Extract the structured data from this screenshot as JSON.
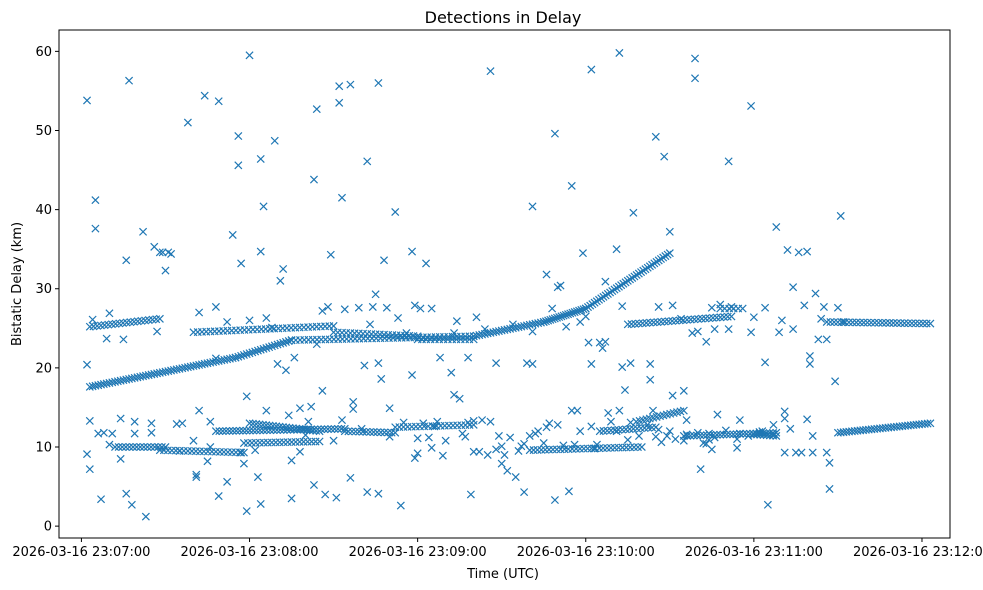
{
  "chart_data": {
    "type": "scatter",
    "title": "Detections in Delay",
    "xlabel": "Time (UTC)",
    "ylabel": "Bistatic Delay (km)",
    "marker": "x",
    "color": "#1f77b4",
    "grid": false,
    "xlim_seconds": [
      -8,
      310
    ],
    "ylim": [
      -1.5,
      62.7
    ],
    "x_origin": "2026-03-16 23:07:00",
    "x_ticks": [
      {
        "value": 0,
        "label": "2026-03-16 23:07:00"
      },
      {
        "value": 60,
        "label": "2026-03-16 23:08:00"
      },
      {
        "value": 120,
        "label": "2026-03-16 23:09:00"
      },
      {
        "value": 180,
        "label": "2026-03-16 23:10:00"
      },
      {
        "value": 240,
        "label": "2026-03-16 23:11:00"
      },
      {
        "value": 300,
        "label": "2026-03-16 23:12:00"
      }
    ],
    "y_ticks": [
      {
        "value": 0,
        "label": "0"
      },
      {
        "value": 10,
        "label": "10"
      },
      {
        "value": 20,
        "label": "20"
      },
      {
        "value": 30,
        "label": "30"
      },
      {
        "value": 40,
        "label": "40"
      },
      {
        "value": 50,
        "label": "50"
      },
      {
        "value": 60,
        "label": "60"
      }
    ],
    "tracks": [
      {
        "name": "rising-track",
        "t_start": 3,
        "t_end": 55,
        "y_start": 17.6,
        "y_end": 21.3,
        "step": 1
      },
      {
        "name": "rising-track",
        "t_start": 55,
        "t_end": 75,
        "y_start": 21.3,
        "y_end": 23.5,
        "step": 1
      },
      {
        "name": "rising-track",
        "t_start": 75,
        "t_end": 140,
        "y_start": 23.5,
        "y_end": 24.0,
        "step": 1.5
      },
      {
        "name": "rising-track",
        "t_start": 140,
        "t_end": 165,
        "y_start": 24.0,
        "y_end": 25.8,
        "step": 1
      },
      {
        "name": "rising-track",
        "t_start": 165,
        "t_end": 180,
        "y_start": 25.8,
        "y_end": 27.5,
        "step": 0.8
      },
      {
        "name": "rising-track",
        "t_start": 180,
        "t_end": 210,
        "y_start": 27.5,
        "y_end": 34.5,
        "step": 0.8
      },
      {
        "name": "upper-band",
        "t_start": 3,
        "t_end": 28,
        "y_start": 25.2,
        "y_end": 26.2,
        "step": 1.3
      },
      {
        "name": "upper-band",
        "t_start": 40,
        "t_end": 90,
        "y_start": 24.5,
        "y_end": 25.3,
        "step": 1.5
      },
      {
        "name": "upper-band",
        "t_start": 90,
        "t_end": 120,
        "y_start": 24.5,
        "y_end": 24.0,
        "step": 1.5
      },
      {
        "name": "upper-band",
        "t_start": 120,
        "t_end": 140,
        "y_start": 23.6,
        "y_end": 23.6,
        "step": 1.5
      },
      {
        "name": "upper-band",
        "t_start": 195,
        "t_end": 232,
        "y_start": 25.5,
        "y_end": 26.5,
        "step": 1.3
      },
      {
        "name": "upper-band",
        "t_start": 228,
        "t_end": 236,
        "y_start": 27.5,
        "y_end": 27.5,
        "step": 1.5
      },
      {
        "name": "upper-band",
        "t_start": 266,
        "t_end": 303,
        "y_start": 25.8,
        "y_end": 25.6,
        "step": 1.3
      },
      {
        "name": "lower-band",
        "t_start": 12,
        "t_end": 30,
        "y_start": 10.0,
        "y_end": 10.0,
        "step": 1.3
      },
      {
        "name": "lower-band",
        "t_start": 28,
        "t_end": 58,
        "y_start": 9.6,
        "y_end": 9.3,
        "step": 1.4
      },
      {
        "name": "lower-band",
        "t_start": 48,
        "t_end": 94,
        "y_start": 12.0,
        "y_end": 12.3,
        "step": 1.2
      },
      {
        "name": "lower-band",
        "t_start": 60,
        "t_end": 85,
        "y_start": 13.0,
        "y_end": 12.0,
        "step": 1.2
      },
      {
        "name": "lower-band",
        "t_start": 58,
        "t_end": 85,
        "y_start": 10.5,
        "y_end": 10.7,
        "step": 1.4
      },
      {
        "name": "lower-band",
        "t_start": 94,
        "t_end": 112,
        "y_start": 12.0,
        "y_end": 11.8,
        "step": 1.3
      },
      {
        "name": "lower-band",
        "t_start": 112,
        "t_end": 140,
        "y_start": 12.5,
        "y_end": 12.8,
        "step": 1.5
      },
      {
        "name": "lower-band",
        "t_start": 160,
        "t_end": 200,
        "y_start": 9.6,
        "y_end": 10.0,
        "step": 1.4
      },
      {
        "name": "lower-band",
        "t_start": 185,
        "t_end": 205,
        "y_start": 12.0,
        "y_end": 12.5,
        "step": 1.3
      },
      {
        "name": "lower-band",
        "t_start": 198,
        "t_end": 215,
        "y_start": 13.2,
        "y_end": 14.6,
        "step": 1.2
      },
      {
        "name": "lower-band",
        "t_start": 215,
        "t_end": 248,
        "y_start": 11.4,
        "y_end": 11.8,
        "step": 1.2
      },
      {
        "name": "lower-band",
        "t_start": 240,
        "t_end": 248,
        "y_start": 11.6,
        "y_end": 11.4,
        "step": 1.2
      },
      {
        "name": "lower-band",
        "t_start": 270,
        "t_end": 303,
        "y_start": 11.8,
        "y_end": 13.0,
        "step": 1.0
      }
    ],
    "points": [
      [
        2,
        53.8
      ],
      [
        2,
        20.4
      ],
      [
        2,
        9.1
      ],
      [
        3,
        7.2
      ],
      [
        3,
        13.3
      ],
      [
        4,
        26.1
      ],
      [
        5,
        41.2
      ],
      [
        5,
        37.6
      ],
      [
        6,
        11.7
      ],
      [
        7,
        3.4
      ],
      [
        8,
        11.8
      ],
      [
        9,
        23.7
      ],
      [
        10,
        26.9
      ],
      [
        10,
        10.3
      ],
      [
        11,
        11.7
      ],
      [
        14,
        8.5
      ],
      [
        14,
        13.6
      ],
      [
        15,
        23.6
      ],
      [
        16,
        4.1
      ],
      [
        16,
        33.6
      ],
      [
        17,
        56.3
      ],
      [
        18,
        2.7
      ],
      [
        19,
        11.7
      ],
      [
        19,
        13.2
      ],
      [
        22,
        37.2
      ],
      [
        23,
        1.2
      ],
      [
        25,
        13.0
      ],
      [
        25,
        11.8
      ],
      [
        26,
        35.3
      ],
      [
        27,
        24.6
      ],
      [
        28,
        34.6
      ],
      [
        29,
        34.6
      ],
      [
        30,
        32.3
      ],
      [
        31,
        34.6
      ],
      [
        32,
        34.4
      ],
      [
        34,
        12.9
      ],
      [
        35,
        9.5
      ],
      [
        36,
        13.0
      ],
      [
        38,
        51.0
      ],
      [
        40,
        10.8
      ],
      [
        41,
        6.5
      ],
      [
        41,
        6.2
      ],
      [
        42,
        14.6
      ],
      [
        42,
        27.0
      ],
      [
        44,
        54.4
      ],
      [
        45,
        8.2
      ],
      [
        46,
        10.0
      ],
      [
        46,
        13.2
      ],
      [
        48,
        21.2
      ],
      [
        48,
        27.7
      ],
      [
        49,
        53.7
      ],
      [
        49,
        3.8
      ],
      [
        52,
        5.6
      ],
      [
        52,
        25.8
      ],
      [
        54,
        36.8
      ],
      [
        56,
        49.3
      ],
      [
        56,
        45.6
      ],
      [
        57,
        33.2
      ],
      [
        57,
        9.3
      ],
      [
        58,
        7.9
      ],
      [
        59,
        1.9
      ],
      [
        59,
        16.4
      ],
      [
        60,
        59.5
      ],
      [
        60,
        26.0
      ],
      [
        62,
        9.6
      ],
      [
        63,
        6.2
      ],
      [
        64,
        2.8
      ],
      [
        64,
        34.7
      ],
      [
        64,
        46.4
      ],
      [
        65,
        40.4
      ],
      [
        66,
        14.6
      ],
      [
        66,
        26.3
      ],
      [
        68,
        25.1
      ],
      [
        69,
        48.7
      ],
      [
        70,
        20.5
      ],
      [
        71,
        31.0
      ],
      [
        72,
        32.5
      ],
      [
        73,
        19.7
      ],
      [
        74,
        14.0
      ],
      [
        75,
        3.5
      ],
      [
        75,
        8.3
      ],
      [
        76,
        21.3
      ],
      [
        78,
        14.9
      ],
      [
        78,
        9.4
      ],
      [
        80,
        11.5
      ],
      [
        81,
        13.2
      ],
      [
        82,
        15.1
      ],
      [
        83,
        43.8
      ],
      [
        83,
        5.2
      ],
      [
        84,
        52.7
      ],
      [
        84,
        23.0
      ],
      [
        86,
        17.1
      ],
      [
        86,
        27.2
      ],
      [
        87,
        4.0
      ],
      [
        88,
        27.7
      ],
      [
        89,
        34.3
      ],
      [
        90,
        10.8
      ],
      [
        91,
        3.6
      ],
      [
        92,
        53.5
      ],
      [
        92,
        55.6
      ],
      [
        93,
        41.5
      ],
      [
        93,
        13.4
      ],
      [
        94,
        27.4
      ],
      [
        96,
        55.8
      ],
      [
        96,
        6.1
      ],
      [
        97,
        14.8
      ],
      [
        97,
        15.7
      ],
      [
        99,
        27.6
      ],
      [
        100,
        12.3
      ],
      [
        101,
        20.3
      ],
      [
        102,
        46.1
      ],
      [
        102,
        4.3
      ],
      [
        103,
        25.5
      ],
      [
        104,
        27.7
      ],
      [
        105,
        29.3
      ],
      [
        106,
        56.0
      ],
      [
        106,
        4.1
      ],
      [
        106,
        20.6
      ],
      [
        107,
        18.6
      ],
      [
        108,
        33.6
      ],
      [
        109,
        27.6
      ],
      [
        110,
        14.9
      ],
      [
        110,
        11.3
      ],
      [
        112,
        39.7
      ],
      [
        113,
        26.3
      ],
      [
        114,
        2.6
      ],
      [
        115,
        13.1
      ],
      [
        116,
        24.4
      ],
      [
        118,
        34.7
      ],
      [
        118,
        19.1
      ],
      [
        119,
        27.9
      ],
      [
        119,
        8.6
      ],
      [
        120,
        9.2
      ],
      [
        120,
        11.1
      ],
      [
        121,
        27.5
      ],
      [
        122,
        13.0
      ],
      [
        123,
        33.2
      ],
      [
        124,
        11.2
      ],
      [
        125,
        9.9
      ],
      [
        125,
        27.5
      ],
      [
        126,
        12.6
      ],
      [
        127,
        13.2
      ],
      [
        128,
        21.3
      ],
      [
        129,
        8.9
      ],
      [
        130,
        10.8
      ],
      [
        132,
        19.4
      ],
      [
        133,
        16.6
      ],
      [
        133,
        24.4
      ],
      [
        134,
        25.9
      ],
      [
        135,
        16.1
      ],
      [
        136,
        11.7
      ],
      [
        137,
        11.3
      ],
      [
        138,
        13.1
      ],
      [
        138,
        21.3
      ],
      [
        139,
        4.0
      ],
      [
        140,
        13.3
      ],
      [
        140,
        9.4
      ],
      [
        141,
        26.4
      ],
      [
        142,
        9.4
      ],
      [
        143,
        13.4
      ],
      [
        144,
        24.9
      ],
      [
        145,
        9.0
      ],
      [
        146,
        57.5
      ],
      [
        146,
        13.2
      ],
      [
        148,
        20.6
      ],
      [
        148,
        9.7
      ],
      [
        149,
        11.4
      ],
      [
        150,
        7.9
      ],
      [
        150,
        10.1
      ],
      [
        151,
        9.0
      ],
      [
        152,
        7.0
      ],
      [
        153,
        11.2
      ],
      [
        154,
        25.5
      ],
      [
        155,
        6.2
      ],
      [
        156,
        9.5
      ],
      [
        157,
        10.1
      ],
      [
        158,
        4.3
      ],
      [
        158,
        10.4
      ],
      [
        159,
        20.6
      ],
      [
        160,
        11.4
      ],
      [
        161,
        40.4
      ],
      [
        161,
        24.6
      ],
      [
        161,
        20.5
      ],
      [
        162,
        11.7
      ],
      [
        163,
        12.0
      ],
      [
        165,
        10.5
      ],
      [
        166,
        31.8
      ],
      [
        166,
        12.5
      ],
      [
        167,
        13.0
      ],
      [
        168,
        27.5
      ],
      [
        169,
        3.3
      ],
      [
        169,
        49.6
      ],
      [
        170,
        30.2
      ],
      [
        170,
        12.8
      ],
      [
        171,
        30.4
      ],
      [
        172,
        10.2
      ],
      [
        173,
        25.2
      ],
      [
        174,
        4.4
      ],
      [
        175,
        43.0
      ],
      [
        175,
        14.6
      ],
      [
        176,
        10.3
      ],
      [
        177,
        14.6
      ],
      [
        178,
        25.8
      ],
      [
        178,
        12.0
      ],
      [
        179,
        34.5
      ],
      [
        180,
        26.5
      ],
      [
        181,
        23.2
      ],
      [
        182,
        57.7
      ],
      [
        182,
        20.5
      ],
      [
        182,
        12.6
      ],
      [
        183,
        9.8
      ],
      [
        184,
        10.3
      ],
      [
        185,
        23.2
      ],
      [
        186,
        22.5
      ],
      [
        187,
        30.9
      ],
      [
        187,
        23.3
      ],
      [
        188,
        14.3
      ],
      [
        189,
        13.2
      ],
      [
        191,
        35.0
      ],
      [
        191,
        12.0
      ],
      [
        192,
        59.8
      ],
      [
        192,
        14.6
      ],
      [
        193,
        20.1
      ],
      [
        193,
        27.8
      ],
      [
        194,
        17.2
      ],
      [
        195,
        10.9
      ],
      [
        196,
        13.1
      ],
      [
        196,
        20.6
      ],
      [
        197,
        39.6
      ],
      [
        199,
        11.4
      ],
      [
        202,
        12.8
      ],
      [
        203,
        18.5
      ],
      [
        203,
        20.5
      ],
      [
        204,
        14.6
      ],
      [
        205,
        11.3
      ],
      [
        205,
        49.2
      ],
      [
        206,
        27.7
      ],
      [
        206,
        12.2
      ],
      [
        207,
        10.6
      ],
      [
        208,
        46.7
      ],
      [
        209,
        11.4
      ],
      [
        210,
        12.0
      ],
      [
        210,
        37.2
      ],
      [
        211,
        16.5
      ],
      [
        211,
        27.9
      ],
      [
        212,
        11.0
      ],
      [
        214,
        26.2
      ],
      [
        215,
        17.1
      ],
      [
        215,
        10.8
      ],
      [
        216,
        13.4
      ],
      [
        216,
        11.6
      ],
      [
        218,
        24.4
      ],
      [
        219,
        59.1
      ],
      [
        219,
        56.6
      ],
      [
        220,
        11.8
      ],
      [
        220,
        24.6
      ],
      [
        221,
        7.2
      ],
      [
        222,
        10.5
      ],
      [
        223,
        10.4
      ],
      [
        223,
        23.3
      ],
      [
        224,
        10.9
      ],
      [
        224,
        11.7
      ],
      [
        225,
        27.6
      ],
      [
        225,
        9.7
      ],
      [
        226,
        24.9
      ],
      [
        226,
        11.2
      ],
      [
        227,
        14.1
      ],
      [
        228,
        28.0
      ],
      [
        230,
        12.1
      ],
      [
        231,
        24.9
      ],
      [
        231,
        46.1
      ],
      [
        232,
        27.7
      ],
      [
        234,
        9.9
      ],
      [
        234,
        11.0
      ],
      [
        235,
        11.7
      ],
      [
        235,
        13.4
      ],
      [
        238,
        11.4
      ],
      [
        239,
        53.1
      ],
      [
        239,
        24.5
      ],
      [
        240,
        26.4
      ],
      [
        242,
        11.9
      ],
      [
        243,
        12.0
      ],
      [
        244,
        20.7
      ],
      [
        244,
        27.6
      ],
      [
        245,
        2.7
      ],
      [
        247,
        11.6
      ],
      [
        247,
        12.8
      ],
      [
        248,
        37.8
      ],
      [
        249,
        24.5
      ],
      [
        250,
        26.0
      ],
      [
        251,
        14.5
      ],
      [
        251,
        13.6
      ],
      [
        251,
        9.3
      ],
      [
        252,
        34.9
      ],
      [
        253,
        12.3
      ],
      [
        254,
        30.2
      ],
      [
        254,
        24.9
      ],
      [
        255,
        9.3
      ],
      [
        256,
        34.6
      ],
      [
        257,
        9.3
      ],
      [
        258,
        27.9
      ],
      [
        259,
        13.5
      ],
      [
        259,
        34.7
      ],
      [
        260,
        21.5
      ],
      [
        260,
        20.5
      ],
      [
        261,
        11.4
      ],
      [
        261,
        9.3
      ],
      [
        262,
        29.4
      ],
      [
        263,
        23.6
      ],
      [
        264,
        26.2
      ],
      [
        265,
        27.7
      ],
      [
        266,
        23.6
      ],
      [
        266,
        9.3
      ],
      [
        267,
        4.7
      ],
      [
        267,
        8.0
      ],
      [
        269,
        18.3
      ],
      [
        270,
        27.6
      ],
      [
        271,
        39.2
      ],
      [
        272,
        25.8
      ]
    ]
  }
}
